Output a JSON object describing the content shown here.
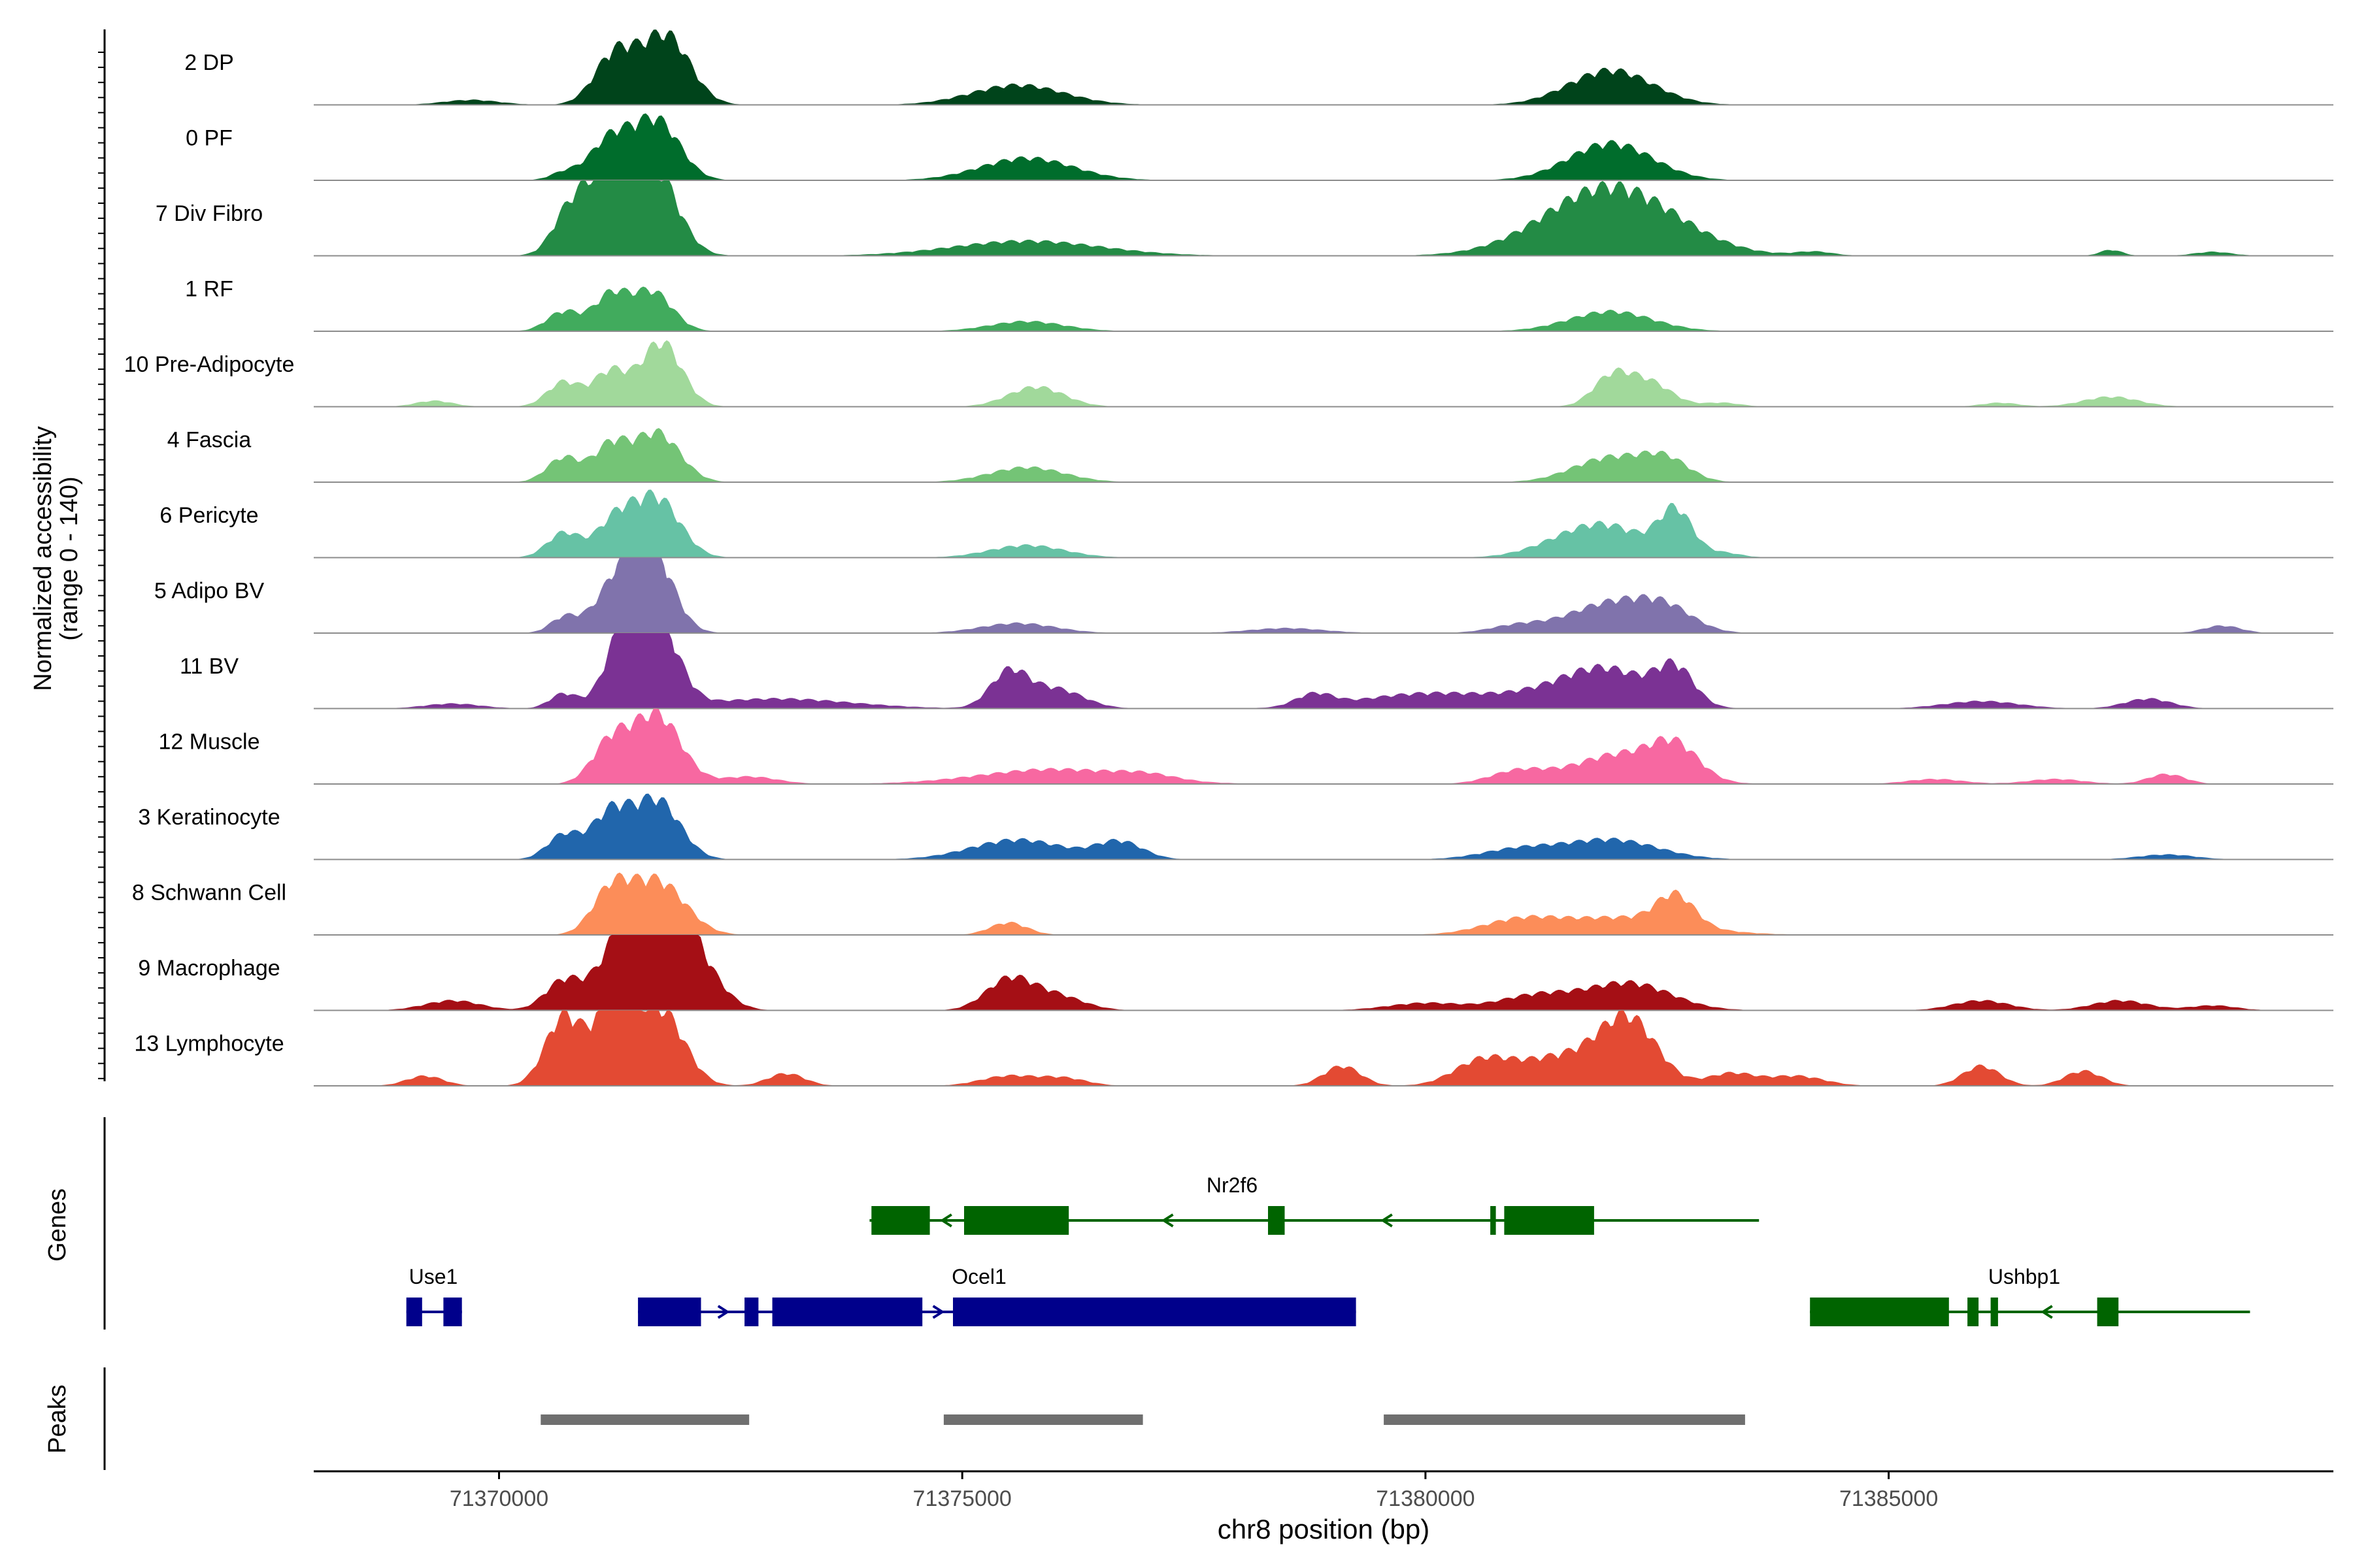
{
  "chart_data": {
    "type": "area",
    "title": "",
    "xlabel": "chr8 position (bp)",
    "ylabel_line1": "Normalized accessibility",
    "ylabel_line2": "(range 0 - 140)",
    "y_range": [
      0,
      140
    ],
    "x_range": [
      71368000,
      71389800
    ],
    "x_ticks": [
      71370000,
      71375000,
      71380000,
      71385000
    ],
    "x_tick_labels": [
      "71370000",
      "71375000",
      "71380000",
      "71385000"
    ],
    "panels": {
      "genes": "Genes",
      "peaks": "Peaks"
    },
    "tracks": [
      {
        "name": "2 DP",
        "color": "#00441b",
        "peaks": [
          [
            71371250,
            100,
            220
          ],
          [
            71371800,
            140,
            260
          ],
          [
            71375600,
            40,
            500
          ],
          [
            71382000,
            70,
            450
          ],
          [
            71369700,
            10,
            300
          ]
        ]
      },
      {
        "name": "0 PF",
        "color": "#006d2c",
        "peaks": [
          [
            71371200,
            80,
            220
          ],
          [
            71371700,
            120,
            250
          ],
          [
            71375700,
            45,
            500
          ],
          [
            71382000,
            75,
            450
          ],
          [
            71370700,
            15,
            150
          ]
        ]
      },
      {
        "name": "7 Div Fibro",
        "color": "#238b45",
        "peaks": [
          [
            71371100,
            160,
            280
          ],
          [
            71371650,
            180,
            260
          ],
          [
            71370700,
            40,
            150
          ],
          [
            71375700,
            30,
            800
          ],
          [
            71382000,
            140,
            700
          ],
          [
            71387400,
            12,
            120
          ],
          [
            71384200,
            8,
            200
          ],
          [
            71388500,
            8,
            200
          ]
        ]
      },
      {
        "name": "1 RF",
        "color": "#41ab5d",
        "peaks": [
          [
            71370700,
            40,
            180
          ],
          [
            71371200,
            70,
            180
          ],
          [
            71371650,
            80,
            220
          ],
          [
            71375700,
            20,
            400
          ],
          [
            71382000,
            40,
            450
          ]
        ]
      },
      {
        "name": "10 Pre-Adipocyte",
        "color": "#a1d99b",
        "peaks": [
          [
            71370700,
            50,
            180
          ],
          [
            71371200,
            70,
            180
          ],
          [
            71371750,
            130,
            220
          ],
          [
            71375800,
            40,
            300
          ],
          [
            71382000,
            55,
            200
          ],
          [
            71382400,
            50,
            250
          ],
          [
            71387400,
            20,
            300
          ],
          [
            71369300,
            12,
            200
          ],
          [
            71383200,
            8,
            200
          ],
          [
            71386200,
            8,
            200
          ]
        ]
      },
      {
        "name": "4 Fascia",
        "color": "#74c476",
        "peaks": [
          [
            71370700,
            50,
            180
          ],
          [
            71371200,
            70,
            180
          ],
          [
            71371700,
            100,
            250
          ],
          [
            71375700,
            30,
            400
          ],
          [
            71382000,
            50,
            400
          ],
          [
            71382600,
            40,
            250
          ]
        ]
      },
      {
        "name": "6 Pericyte",
        "color": "#66c2a5",
        "peaks": [
          [
            71370700,
            50,
            180
          ],
          [
            71371250,
            70,
            200
          ],
          [
            71371700,
            120,
            250
          ],
          [
            71375700,
            25,
            400
          ],
          [
            71382000,
            55,
            400
          ],
          [
            71382700,
            90,
            180
          ],
          [
            71381500,
            25,
            400
          ],
          [
            71383200,
            10,
            200
          ]
        ]
      },
      {
        "name": "5 Adipo BV",
        "color": "#8073ac",
        "peaks": [
          [
            71370700,
            30,
            150
          ],
          [
            71371300,
            100,
            250
          ],
          [
            71371650,
            150,
            230
          ],
          [
            71375600,
            20,
            400
          ],
          [
            71382000,
            60,
            450
          ],
          [
            71382600,
            40,
            300
          ],
          [
            71388600,
            15,
            200
          ],
          [
            71378500,
            10,
            400
          ],
          [
            71381000,
            15,
            300
          ]
        ]
      },
      {
        "name": "11 BV",
        "color": "#7b3294",
        "peaks": [
          [
            71370700,
            30,
            150
          ],
          [
            71371350,
            140,
            200
          ],
          [
            71371700,
            170,
            230
          ],
          [
            71375500,
            70,
            200
          ],
          [
            71376000,
            40,
            300
          ],
          [
            71382000,
            60,
            450
          ],
          [
            71382700,
            70,
            200
          ],
          [
            71380000,
            30,
            700
          ],
          [
            71381500,
            30,
            600
          ],
          [
            71387800,
            20,
            250
          ],
          [
            71378800,
            25,
            200
          ],
          [
            71373000,
            20,
            800
          ],
          [
            71386000,
            15,
            400
          ],
          [
            71369500,
            10,
            300
          ]
        ]
      },
      {
        "name": "12 Muscle",
        "color": "#f768a1",
        "peaks": [
          [
            71371200,
            80,
            200
          ],
          [
            71371700,
            140,
            260
          ],
          [
            71376000,
            30,
            800
          ],
          [
            71381000,
            25,
            300
          ],
          [
            71382100,
            60,
            500
          ],
          [
            71382700,
            60,
            250
          ],
          [
            71377000,
            10,
            300
          ],
          [
            71372700,
            15,
            300
          ],
          [
            71385500,
            10,
            300
          ],
          [
            71386800,
            10,
            300
          ],
          [
            71388000,
            20,
            200
          ]
        ]
      },
      {
        "name": "3 Keratinocyte",
        "color": "#2166ac",
        "peaks": [
          [
            71370700,
            50,
            180
          ],
          [
            71371200,
            90,
            200
          ],
          [
            71371700,
            120,
            250
          ],
          [
            71375600,
            40,
            500
          ],
          [
            71376700,
            35,
            250
          ],
          [
            71382000,
            40,
            500
          ],
          [
            71381000,
            20,
            400
          ],
          [
            71388000,
            10,
            300
          ]
        ]
      },
      {
        "name": "8 Schwann Cell",
        "color": "#fc8d59",
        "peaks": [
          [
            71371200,
            80,
            200
          ],
          [
            71371700,
            110,
            300
          ],
          [
            71375500,
            25,
            200
          ],
          [
            71382100,
            35,
            700
          ],
          [
            71382700,
            60,
            200
          ],
          [
            71381000,
            25,
            400
          ]
        ]
      },
      {
        "name": "9 Macrophage",
        "color": "#a50f15",
        "peaks": [
          [
            71370700,
            60,
            200
          ],
          [
            71371350,
            150,
            250
          ],
          [
            71371800,
            240,
            250
          ],
          [
            71372200,
            60,
            250
          ],
          [
            71375500,
            60,
            250
          ],
          [
            71376000,
            30,
            300
          ],
          [
            71382200,
            55,
            450
          ],
          [
            71381200,
            30,
            400
          ],
          [
            71369500,
            20,
            300
          ],
          [
            71387500,
            20,
            300
          ],
          [
            71386000,
            20,
            300
          ],
          [
            71380000,
            15,
            400
          ],
          [
            71388500,
            10,
            250
          ]
        ]
      },
      {
        "name": "13 Lymphocyte",
        "color": "#e34a33",
        "peaks": [
          [
            71370700,
            140,
            200
          ],
          [
            71371250,
            180,
            200
          ],
          [
            71371750,
            150,
            250
          ],
          [
            71382200,
            120,
            300
          ],
          [
            71381500,
            60,
            500
          ],
          [
            71380600,
            45,
            300
          ],
          [
            71379100,
            40,
            200
          ],
          [
            71386000,
            40,
            200
          ],
          [
            71387100,
            30,
            200
          ],
          [
            71373100,
            25,
            200
          ],
          [
            71375500,
            20,
            300
          ],
          [
            71376100,
            15,
            250
          ],
          [
            71383300,
            25,
            250
          ],
          [
            71384000,
            20,
            300
          ],
          [
            71369200,
            20,
            200
          ]
        ]
      }
    ],
    "genes": [
      {
        "name": "Nr2f6",
        "strand": "-",
        "color": "#006400",
        "row": 1,
        "start": 71374000,
        "end": 71383600,
        "exons": [
          [
            71374020,
            71374650
          ],
          [
            71375020,
            71376150
          ],
          [
            71378300,
            71378480
          ],
          [
            71380700,
            71380760
          ],
          [
            71380850,
            71381820
          ]
        ]
      },
      {
        "name": "Use1",
        "strand": "+",
        "color": "#00008b",
        "row": 2,
        "start": 71369000,
        "end": 71369600,
        "exons": [
          [
            71369000,
            71369170
          ],
          [
            71369400,
            71369600
          ]
        ]
      },
      {
        "name": "Ocel1",
        "strand": "+",
        "color": "#00008b",
        "row": 2,
        "start": 71371500,
        "end": 71379250,
        "exons": [
          [
            71371500,
            71372180
          ],
          [
            71372650,
            71372800
          ],
          [
            71372950,
            71374570
          ],
          [
            71374900,
            71379250
          ]
        ]
      },
      {
        "name": "Ushbp1",
        "strand": "-",
        "color": "#006400",
        "row": 2,
        "start": 71384150,
        "end": 71388900,
        "exons": [
          [
            71384150,
            71385650
          ],
          [
            71385850,
            71385970
          ],
          [
            71386100,
            71386180
          ],
          [
            71387250,
            71387480
          ]
        ]
      }
    ],
    "peak_regions": [
      [
        71370450,
        71372700
      ],
      [
        71374800,
        71376950
      ],
      [
        71379550,
        71383450
      ]
    ]
  }
}
